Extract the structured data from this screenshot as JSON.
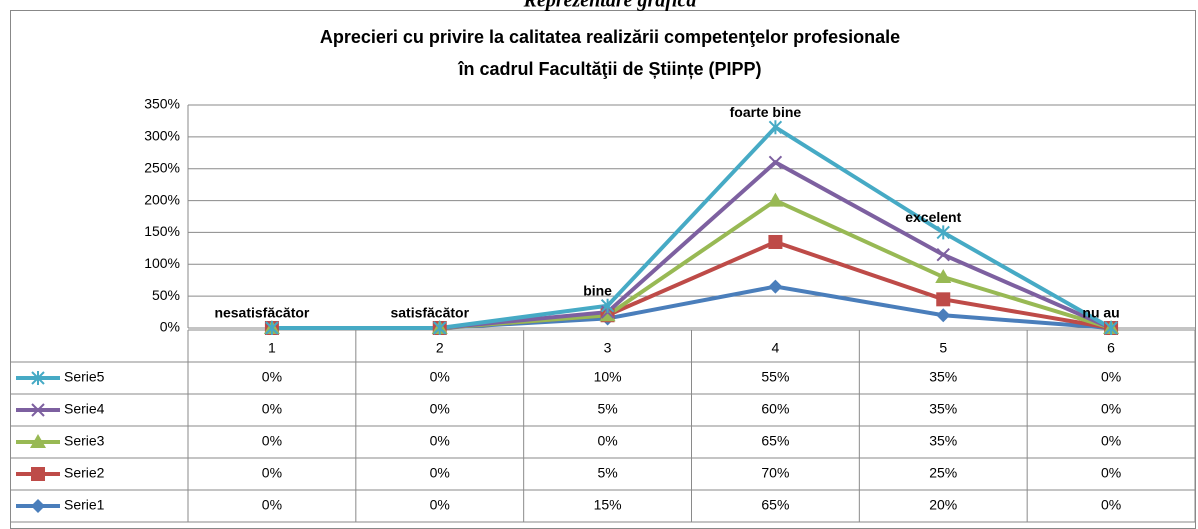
{
  "page_heading": "Reprezentare grafică",
  "chart_data": {
    "type": "line",
    "stacked": true,
    "title": [
      "Aprecieri cu privire la calitatea realizării competenţelor profesionale",
      "în cadrul Facultăţii de Științe (PIPP)"
    ],
    "categories": [
      "1",
      "2",
      "3",
      "4",
      "5",
      "6"
    ],
    "point_labels": [
      "nesatisfăcător",
      "satisfăcător",
      "bine",
      "foarte bine",
      "excelent",
      "nu au"
    ],
    "ylim": [
      0,
      350
    ],
    "yticks": [
      {
        "value": 0,
        "label": "0%"
      },
      {
        "value": 50,
        "label": "50%"
      },
      {
        "value": 100,
        "label": "100%"
      },
      {
        "value": 150,
        "label": "150%"
      },
      {
        "value": 200,
        "label": "200%"
      },
      {
        "value": 250,
        "label": "250%"
      },
      {
        "value": 300,
        "label": "300%"
      },
      {
        "value": 350,
        "label": "350%"
      }
    ],
    "grid": true,
    "series": [
      {
        "name": "Serie1",
        "color": "#4a7ebb",
        "marker": "diamond",
        "values": [
          0,
          0,
          15,
          65,
          20,
          0
        ],
        "value_labels": [
          "0%",
          "0%",
          "15%",
          "65%",
          "20%",
          "0%"
        ]
      },
      {
        "name": "Serie2",
        "color": "#be4b48",
        "marker": "square",
        "values": [
          0,
          0,
          5,
          70,
          25,
          0
        ],
        "value_labels": [
          "0%",
          "0%",
          "5%",
          "70%",
          "25%",
          "0%"
        ]
      },
      {
        "name": "Serie3",
        "color": "#98b954",
        "marker": "triangle",
        "values": [
          0,
          0,
          0,
          65,
          35,
          0
        ],
        "value_labels": [
          "0%",
          "0%",
          "0%",
          "65%",
          "35%",
          "0%"
        ]
      },
      {
        "name": "Serie4",
        "color": "#7d60a0",
        "marker": "x",
        "values": [
          0,
          0,
          5,
          60,
          35,
          0
        ],
        "value_labels": [
          "0%",
          "0%",
          "5%",
          "60%",
          "35%",
          "0%"
        ]
      },
      {
        "name": "Serie5",
        "color": "#46aac5",
        "marker": "star",
        "values": [
          0,
          0,
          10,
          55,
          35,
          0
        ],
        "value_labels": [
          "0%",
          "0%",
          "10%",
          "55%",
          "35%",
          "0%"
        ]
      }
    ]
  }
}
